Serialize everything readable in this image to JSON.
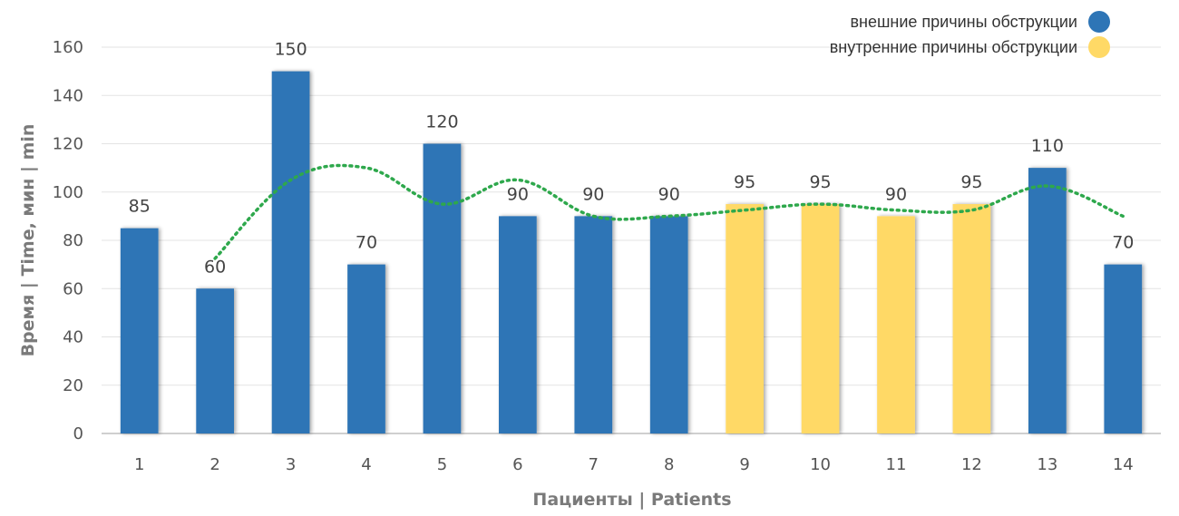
{
  "chart_data": {
    "type": "bar",
    "categories": [
      "1",
      "2",
      "3",
      "4",
      "5",
      "6",
      "7",
      "8",
      "9",
      "10",
      "11",
      "12",
      "13",
      "14"
    ],
    "values": [
      85,
      60,
      150,
      70,
      120,
      90,
      90,
      90,
      95,
      95,
      90,
      95,
      110,
      70
    ],
    "groups": [
      "external",
      "external",
      "external",
      "external",
      "external",
      "external",
      "external",
      "external",
      "internal",
      "internal",
      "internal",
      "internal",
      "external",
      "external"
    ],
    "trendline": {
      "type": "moving-average",
      "period": 2,
      "style": "dotted",
      "color": "#2ea84c"
    },
    "legend": [
      {
        "key": "external",
        "label": "внешние причины обструкции",
        "color": "#2e75b6"
      },
      {
        "key": "internal",
        "label": "внутренние причины обструкции",
        "color": "#ffd966"
      }
    ],
    "legend_position": "top-right",
    "title": "",
    "xlabel": "Пациенты | Patients",
    "ylabel": "Время | Time, мин | min",
    "ylim": [
      0,
      160
    ],
    "yticks": [
      0,
      20,
      40,
      60,
      80,
      100,
      120,
      140,
      160
    ],
    "grid": true
  }
}
